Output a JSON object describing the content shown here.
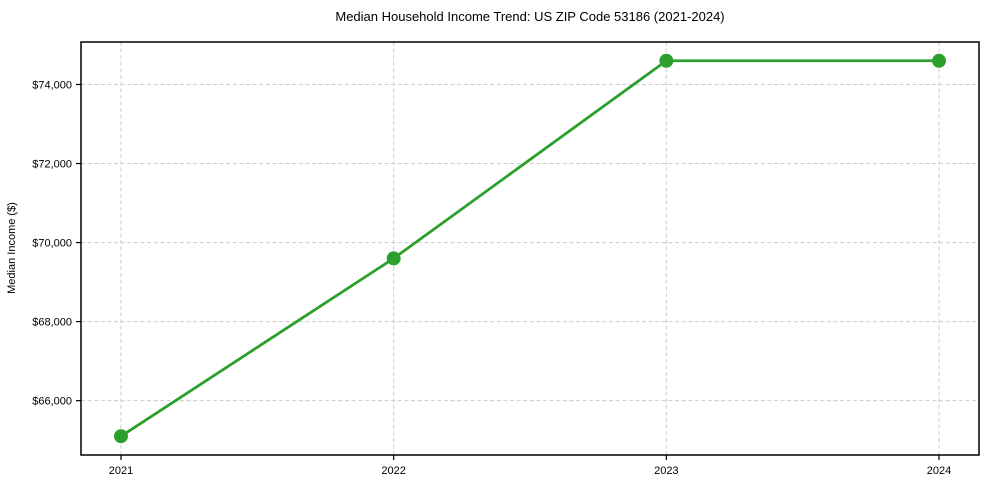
{
  "chart_data": {
    "type": "line",
    "title": "Median Household Income Trend: US ZIP Code 53186 (2021-2024)",
    "xlabel": "",
    "ylabel": "Median Income ($)",
    "categories": [
      "2021",
      "2022",
      "2023",
      "2024"
    ],
    "series": [
      {
        "name": "median-household-income",
        "values": [
          65100,
          69600,
          74600,
          74600
        ],
        "color": "#2ca02c",
        "marker": "circle"
      }
    ],
    "y_ticks": [
      {
        "value": 66000,
        "label": "$66,000"
      },
      {
        "value": 68000,
        "label": "$68,000"
      },
      {
        "value": 70000,
        "label": "$70,000"
      },
      {
        "value": 72000,
        "label": "$72,000"
      },
      {
        "value": 74000,
        "label": "$74,000"
      }
    ],
    "ylim": [
      64625,
      75075
    ],
    "grid": {
      "show": true,
      "style": "dashed",
      "color": "#cccccc"
    },
    "legend": "none",
    "background_color": "#ffffff",
    "axis_color": "#000000"
  }
}
